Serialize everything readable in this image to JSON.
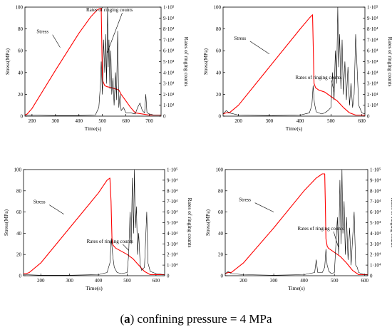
{
  "caption": {
    "prefix": "(",
    "letter": "a",
    "rest": ") confining pressure = 4 MPa"
  },
  "colors": {
    "stress": "#ff0000",
    "ringing": "#000000",
    "axis": "#000000"
  },
  "chart_data": [
    {
      "type": "line",
      "xlabel": "Time(s)",
      "ylabel": "Stress(MPa)",
      "y2label": "Rates of ringing counts",
      "xlim": [
        170,
        750
      ],
      "xticks": [
        200,
        300,
        400,
        500,
        600,
        700
      ],
      "ylim": [
        0,
        100
      ],
      "yticks": [
        0,
        20,
        40,
        60,
        80,
        100
      ],
      "y2lim": [
        0,
        100000
      ],
      "y2ticks": [
        "0",
        "1·10⁴",
        "2·10⁴",
        "3·10⁴",
        "4·10⁴",
        "5·10⁴",
        "6·10⁴",
        "7·10⁴",
        "8·10⁴",
        "9·10⁴",
        "1·10⁵"
      ],
      "annotations": [
        {
          "text": "Stress",
          "label_x": 245,
          "label_y": 76,
          "target_x": 320,
          "target_y": 63
        },
        {
          "text": "Rates of ringing counts",
          "label_x": 530,
          "label_y": 96,
          "target_x": 520,
          "target_y": 58
        }
      ],
      "series": [
        {
          "name": "Stress",
          "axis": "left",
          "x": [
            170,
            180,
            200,
            300,
            400,
            450,
            480,
            495,
            497,
            500,
            510,
            520,
            540,
            570,
            580,
            600,
            620,
            640,
            700,
            750
          ],
          "y": [
            1,
            2,
            7,
            42,
            76,
            91,
            98,
            99,
            72,
            33,
            28,
            27,
            26,
            24,
            20,
            14,
            8,
            3,
            1,
            1
          ]
        },
        {
          "name": "Rates of ringing counts",
          "axis": "right",
          "x": [
            170,
            200,
            300,
            400,
            470,
            485,
            492,
            495,
            500,
            505,
            510,
            514,
            518,
            522,
            525,
            528,
            532,
            536,
            540,
            545,
            550,
            556,
            560,
            565,
            570,
            575,
            580,
            590,
            600,
            620,
            640,
            650,
            660,
            670,
            680,
            685,
            690,
            700,
            720,
            750
          ],
          "y": [
            1000,
            1000,
            500,
            500,
            1000,
            8000,
            30000,
            50000,
            20000,
            70000,
            40000,
            75000,
            30000,
            100000,
            45000,
            70000,
            25000,
            60000,
            20000,
            35000,
            10000,
            40000,
            15000,
            78000,
            8000,
            20000,
            5000,
            8000,
            3000,
            3000,
            2000,
            8000,
            12000,
            5000,
            3000,
            20000,
            3000,
            2000,
            1000,
            1000
          ]
        }
      ]
    },
    {
      "type": "line",
      "xlabel": "Time(s)",
      "ylabel": "Stress(MPa)",
      "y2label": "Rates of ringing counts",
      "xlim": [
        150,
        610
      ],
      "xticks": [
        200,
        300,
        400,
        500,
        600
      ],
      "ylim": [
        0,
        100
      ],
      "yticks": [
        0,
        20,
        40,
        60,
        80,
        100
      ],
      "y2lim": [
        0,
        100000
      ],
      "y2ticks": [
        "0",
        "1·10⁴",
        "2·10⁴",
        "3·10⁴",
        "4·10⁴",
        "5·10⁴",
        "6·10⁴",
        "7·10⁴",
        "8·10⁴",
        "9·10⁴",
        "1·10⁵"
      ],
      "annotations": [
        {
          "text": "Stress",
          "label_x": 205,
          "label_y": 70,
          "target_x": 300,
          "target_y": 57
        },
        {
          "text": "Rates of ringing counts",
          "label_x": 460,
          "label_y": 34,
          "target_x": 510,
          "target_y": 22
        }
      ],
      "series": [
        {
          "name": "Stress",
          "axis": "left",
          "x": [
            150,
            160,
            170,
            200,
            300,
            400,
            430,
            440,
            442,
            445,
            450,
            460,
            480,
            500,
            520,
            540,
            560,
            580,
            600,
            610
          ],
          "y": [
            2,
            3,
            3,
            10,
            45,
            80,
            90,
            93,
            70,
            30,
            26,
            24,
            22,
            18,
            14,
            8,
            3,
            1,
            1,
            1
          ]
        },
        {
          "name": "Rates of ringing counts",
          "axis": "right",
          "x": [
            150,
            160,
            170,
            200,
            300,
            400,
            430,
            438,
            442,
            446,
            452,
            460,
            470,
            480,
            490,
            500,
            505,
            510,
            514,
            518,
            522,
            525,
            528,
            532,
            536,
            540,
            545,
            550,
            555,
            560,
            565,
            570,
            575,
            580,
            590,
            600,
            610
          ],
          "y": [
            2000,
            5000,
            3000,
            1000,
            500,
            1000,
            3000,
            10000,
            28000,
            12000,
            4000,
            3000,
            2000,
            3000,
            5000,
            8000,
            40000,
            15000,
            60000,
            30000,
            100000,
            45000,
            75000,
            25000,
            70000,
            20000,
            50000,
            15000,
            45000,
            10000,
            30000,
            8000,
            20000,
            75000,
            10000,
            3000,
            2000
          ]
        }
      ]
    },
    {
      "type": "line",
      "xlabel": "Time(s)",
      "ylabel": "Stress(MPa)",
      "y2label": "Rates of ringing counts",
      "xlim": [
        140,
        630
      ],
      "xticks": [
        200,
        300,
        400,
        500,
        600
      ],
      "ylim": [
        0,
        100
      ],
      "yticks": [
        0,
        20,
        40,
        60,
        80,
        100
      ],
      "y2lim": [
        0,
        100000
      ],
      "y2ticks": [
        "0",
        "1·10⁴",
        "2·10⁴",
        "3·10⁴",
        "4·10⁴",
        "5·10⁴",
        "6·10⁴",
        "7·10⁴",
        "8·10⁴",
        "9·10⁴",
        "1·10⁵"
      ],
      "annotations": [
        {
          "text": "Stress",
          "label_x": 195,
          "label_y": 68,
          "target_x": 280,
          "target_y": 58
        },
        {
          "text": "Rates of ringing counts",
          "label_x": 440,
          "label_y": 31,
          "target_x": 505,
          "target_y": 24
        }
      ],
      "series": [
        {
          "name": "Stress",
          "axis": "left",
          "x": [
            140,
            150,
            160,
            200,
            300,
            400,
            430,
            440,
            444,
            447,
            450,
            460,
            480,
            500,
            520,
            540,
            560,
            580,
            600,
            630
          ],
          "y": [
            2,
            2,
            3,
            12,
            45,
            78,
            90,
            92,
            70,
            35,
            29,
            26,
            23,
            20,
            16,
            10,
            4,
            1,
            1,
            1
          ]
        },
        {
          "name": "Rates of ringing counts",
          "axis": "right",
          "x": [
            140,
            200,
            300,
            400,
            430,
            440,
            445,
            450,
            455,
            465,
            480,
            500,
            505,
            510,
            514,
            518,
            522,
            525,
            528,
            532,
            536,
            540,
            545,
            550,
            560,
            565,
            568,
            572,
            580,
            600,
            630
          ],
          "y": [
            1000,
            500,
            500,
            1000,
            3000,
            12000,
            35000,
            18000,
            8000,
            3000,
            2000,
            3000,
            20000,
            60000,
            30000,
            92000,
            40000,
            100000,
            45000,
            65000,
            20000,
            40000,
            10000,
            5000,
            8000,
            40000,
            60000,
            12000,
            4000,
            2000,
            1000
          ]
        }
      ]
    },
    {
      "type": "line",
      "xlabel": "Time(s)",
      "ylabel": "Stress(MPa)",
      "y2label": "Rates of ringing counts",
      "xlim": [
        140,
        610
      ],
      "xticks": [
        200,
        300,
        400,
        500,
        600
      ],
      "ylim": [
        0,
        100
      ],
      "yticks": [
        0,
        20,
        40,
        60,
        80,
        100
      ],
      "y2lim": [
        0,
        100000
      ],
      "y2ticks": [
        "0",
        "1·10⁴",
        "2·10⁴",
        "3·10⁴",
        "4·10⁴",
        "5·10⁴",
        "6·10⁴",
        "7·10⁴",
        "8·10⁴",
        "9·10⁴",
        "1·10⁵"
      ],
      "annotations": [
        {
          "text": "Stress",
          "label_x": 205,
          "label_y": 70,
          "target_x": 300,
          "target_y": 60
        },
        {
          "text": "Rates of ringing counts",
          "label_x": 455,
          "label_y": 43,
          "target_x": 515,
          "target_y": 25
        }
      ],
      "series": [
        {
          "name": "Stress",
          "axis": "left",
          "x": [
            140,
            150,
            160,
            200,
            300,
            400,
            440,
            460,
            468,
            470,
            472,
            476,
            480,
            500,
            520,
            540,
            560,
            580,
            600,
            610
          ],
          "y": [
            2,
            3,
            3,
            12,
            45,
            80,
            92,
            96,
            96,
            70,
            35,
            28,
            26,
            22,
            18,
            12,
            5,
            1,
            1,
            1
          ]
        },
        {
          "name": "Rates of ringing counts",
          "axis": "right",
          "x": [
            140,
            150,
            160,
            200,
            300,
            400,
            435,
            440,
            445,
            460,
            468,
            472,
            476,
            482,
            490,
            500,
            505,
            510,
            514,
            518,
            522,
            525,
            528,
            532,
            536,
            540,
            545,
            550,
            555,
            560,
            565,
            570,
            575,
            580,
            590,
            600,
            610
          ],
          "y": [
            2000,
            4000,
            2000,
            1000,
            500,
            1000,
            3000,
            15000,
            3000,
            3000,
            8000,
            25000,
            10000,
            4000,
            2000,
            3000,
            30000,
            55000,
            20000,
            90000,
            30000,
            100000,
            40000,
            70000,
            20000,
            55000,
            15000,
            45000,
            10000,
            35000,
            60000,
            10000,
            8000,
            3000,
            2000,
            1000,
            1000
          ]
        }
      ]
    }
  ]
}
